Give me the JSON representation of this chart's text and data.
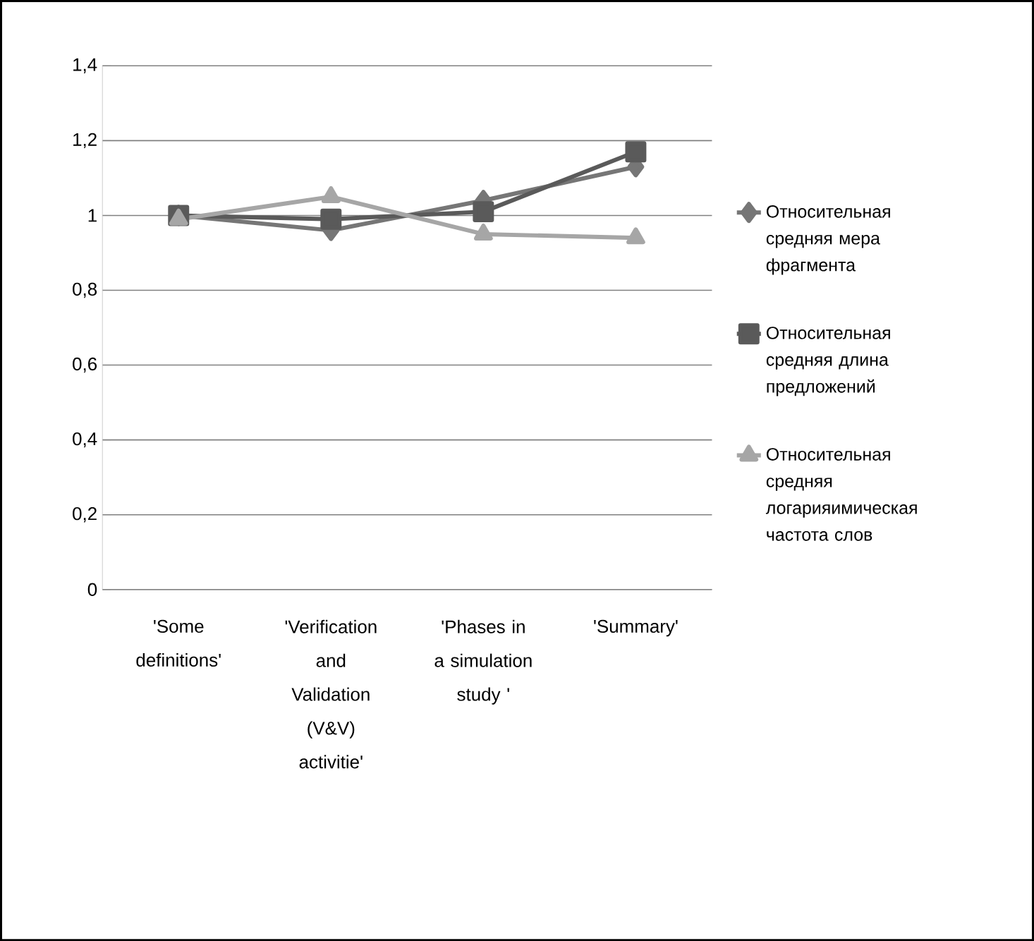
{
  "chart_data": {
    "type": "line",
    "categories": [
      "'Some definitions'",
      "'Verification and Validation (V&V) activitie'",
      "'Phases in a simulation study '",
      "'Summary'"
    ],
    "series": [
      {
        "name": "Относительная средняя мера фрагмента",
        "color": "#767676",
        "marker": "diamond",
        "values": [
          1.0,
          0.96,
          1.04,
          1.13
        ]
      },
      {
        "name": "Относительная средняя длина предложений",
        "color": "#5a5a5a",
        "marker": "square",
        "values": [
          1.0,
          0.99,
          1.01,
          1.17
        ]
      },
      {
        "name": "Относительная средняя логарияимическая частота слов",
        "color": "#a6a6a6",
        "marker": "triangle",
        "values": [
          0.99,
          1.05,
          0.95,
          0.94
        ]
      }
    ],
    "ylim": [
      0,
      1.4
    ],
    "yticks": [
      0,
      {
        "value": 0.2,
        "label": "0,2"
      },
      {
        "value": 0.4,
        "label": "0,4"
      },
      {
        "value": 0.6,
        "label": "0,6"
      },
      {
        "value": 0.8,
        "label": "0,8"
      },
      1,
      {
        "value": 1.2,
        "label": "1,2"
      },
      {
        "value": 1.4,
        "label": "1,4"
      }
    ],
    "grid": "y",
    "legend": "right"
  }
}
